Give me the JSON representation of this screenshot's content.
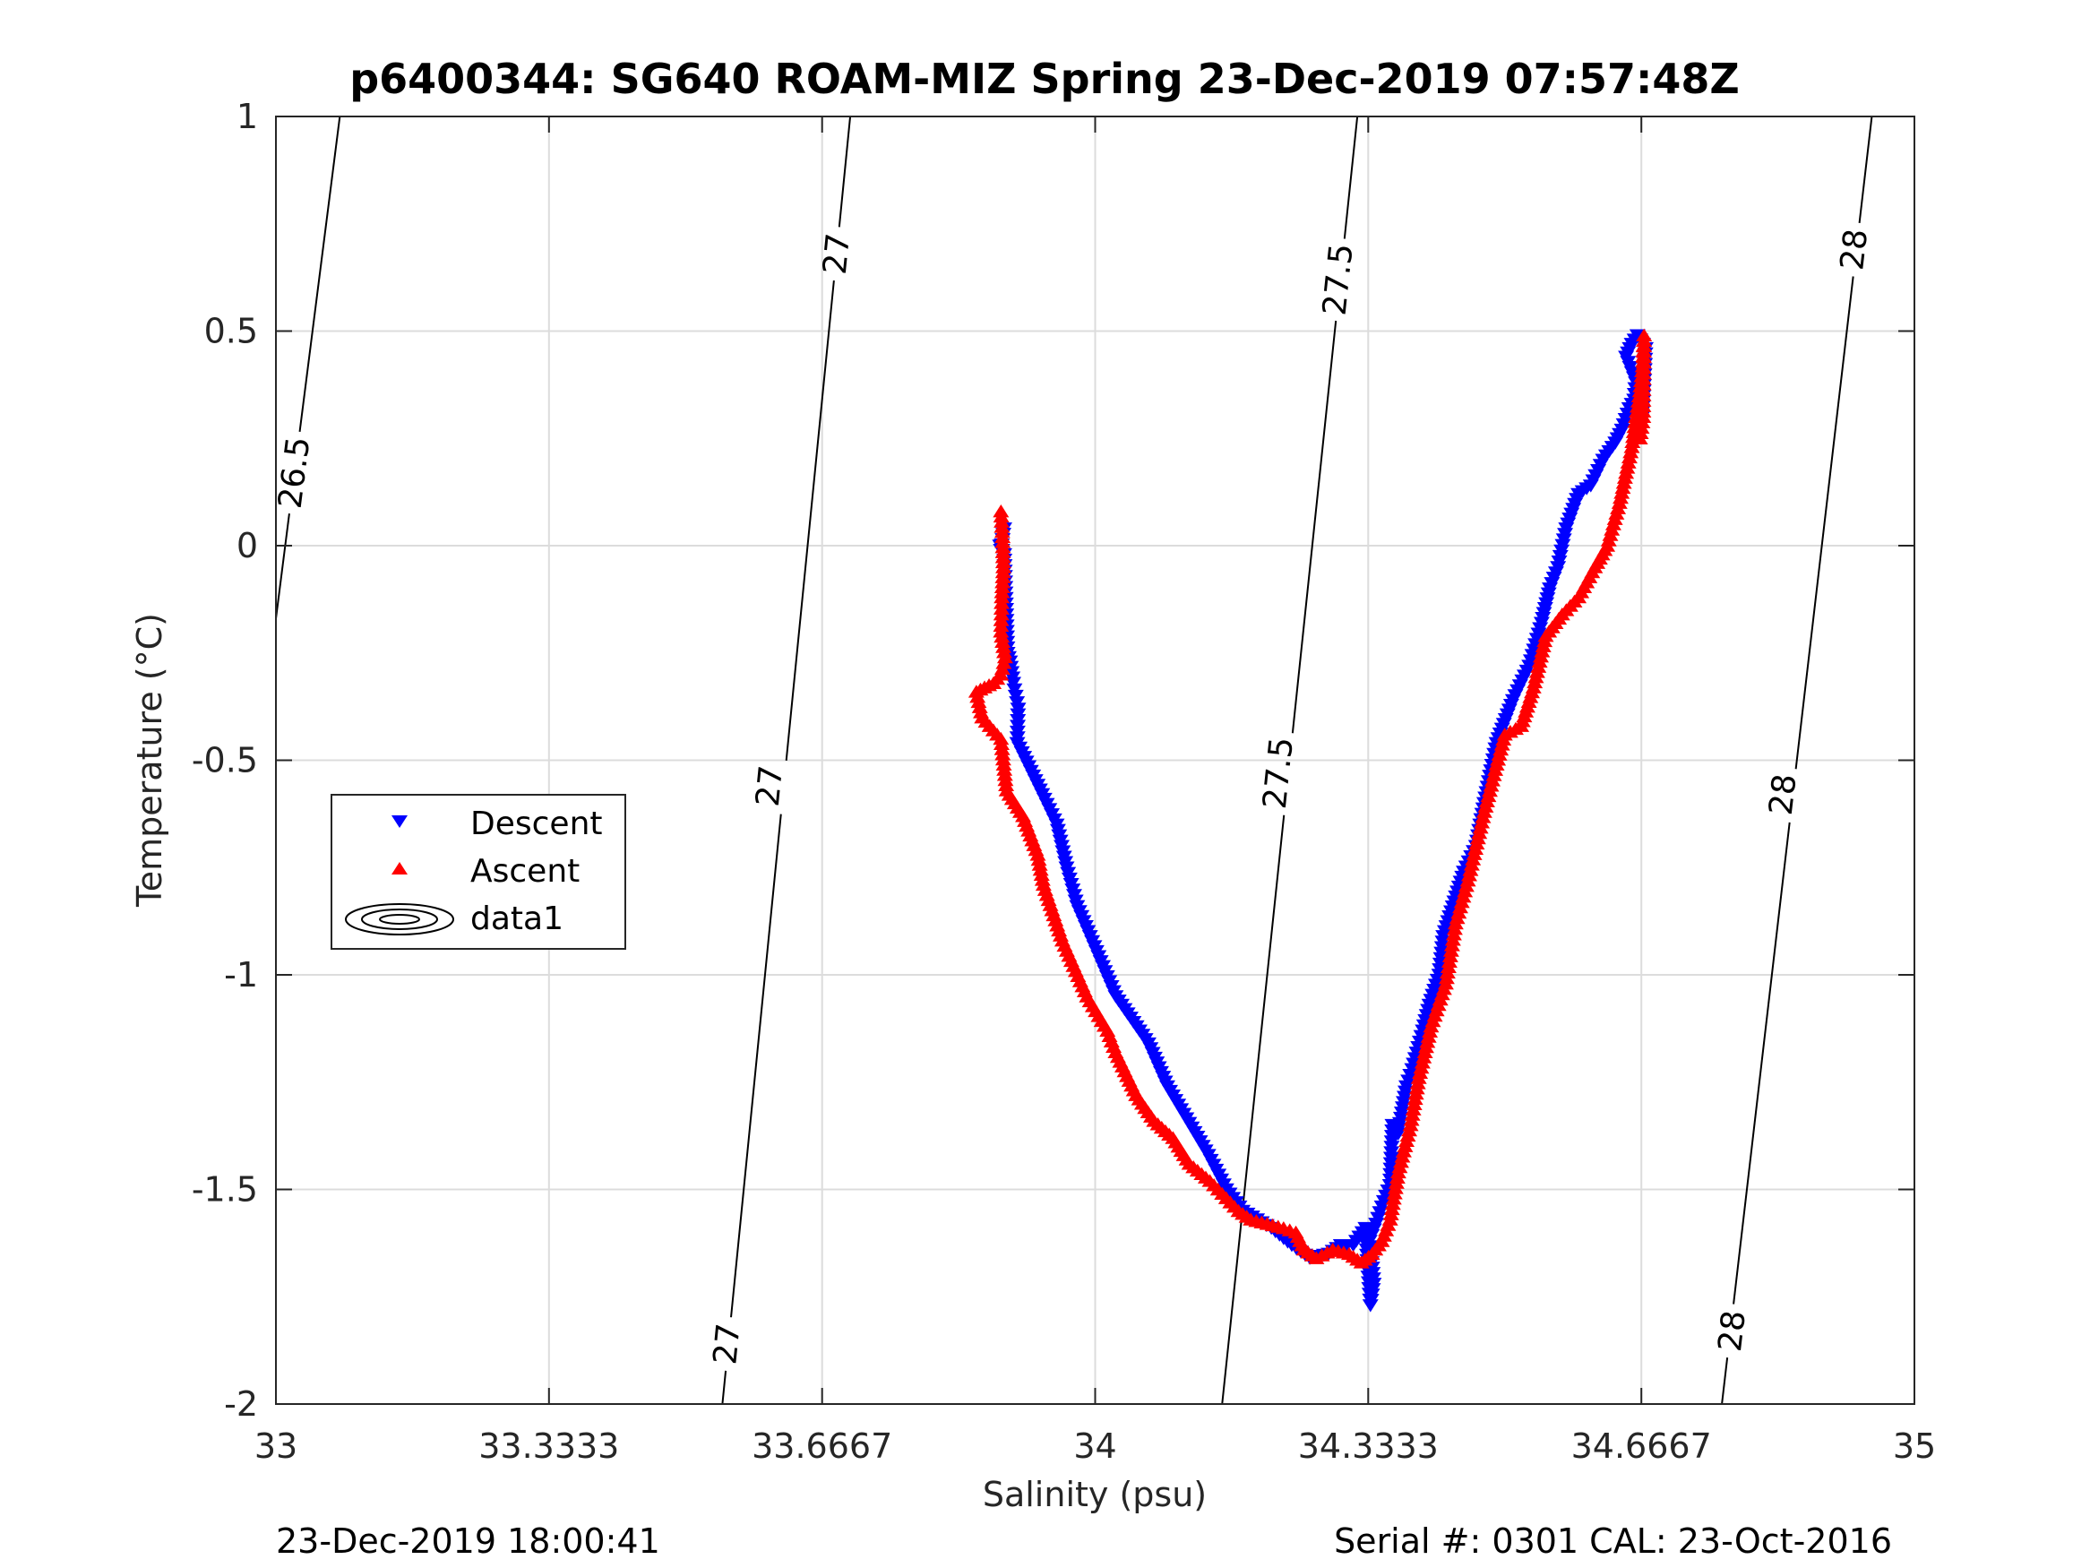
{
  "chart_data": {
    "type": "scatter",
    "title": "p6400344: SG640 ROAM-MIZ Spring 23-Dec-2019 07:57:48Z",
    "xlabel": "Salinity (psu)",
    "ylabel": "Temperature (°C)",
    "xlim": [
      33,
      35
    ],
    "ylim": [
      -2,
      1
    ],
    "grid": true,
    "x_ticks": [
      "33",
      "33.3333",
      "33.6667",
      "34",
      "34.3333",
      "34.6667",
      "35"
    ],
    "y_ticks": [
      "1",
      "0.5",
      "0",
      "-0.5",
      "-1",
      "-1.5",
      "-2"
    ],
    "legend": {
      "placement": "left-middle",
      "entries": [
        "Descent",
        "Ascent",
        "data1"
      ]
    },
    "colors": {
      "descent": "#0000ff",
      "ascent": "#ff0000",
      "contour": "#000000",
      "grid": "#dcdcdc"
    },
    "isopycnals": [
      {
        "label": "26.5",
        "points": [
          [
            33.0,
            -0.17
          ],
          [
            33.078,
            1.0
          ]
        ],
        "labels_at": [
          [
            33.023,
            0.17
          ]
        ]
      },
      {
        "label": "27",
        "points": [
          [
            33.545,
            -2.0
          ],
          [
            33.701,
            1.0
          ]
        ],
        "labels_at": [
          [
            33.551,
            -1.86
          ],
          [
            33.603,
            -0.56
          ],
          [
            33.685,
            0.68
          ]
        ]
      },
      {
        "label": "27.5",
        "points": [
          [
            34.155,
            -2.0
          ],
          [
            34.32,
            1.0
          ]
        ],
        "labels_at": [
          [
            34.224,
            -0.53
          ],
          [
            34.297,
            0.62
          ]
        ]
      },
      {
        "label": "28",
        "points": [
          [
            34.765,
            -2.0
          ],
          [
            34.948,
            1.0
          ]
        ],
        "labels_at": [
          [
            34.778,
            -1.83
          ],
          [
            34.84,
            -0.58
          ],
          [
            34.927,
            0.69
          ]
        ]
      }
    ],
    "series": [
      {
        "name": "Descent",
        "marker": "triangle-down",
        "points": [
          [
            33.889,
            0.04
          ],
          [
            33.885,
            -0.01
          ],
          [
            33.884,
            0.0
          ],
          [
            33.889,
            -0.02
          ],
          [
            33.893,
            -0.25
          ],
          [
            33.896,
            -0.27
          ],
          [
            33.9,
            -0.32
          ],
          [
            33.903,
            -0.35
          ],
          [
            33.906,
            -0.38
          ],
          [
            33.905,
            -0.46
          ],
          [
            33.938,
            -0.59
          ],
          [
            33.953,
            -0.65
          ],
          [
            33.965,
            -0.75
          ],
          [
            33.978,
            -0.84
          ],
          [
            34.025,
            -1.05
          ],
          [
            34.065,
            -1.16
          ],
          [
            34.088,
            -1.26
          ],
          [
            34.138,
            -1.42
          ],
          [
            34.16,
            -1.5
          ],
          [
            34.18,
            -1.55
          ],
          [
            34.215,
            -1.59
          ],
          [
            34.24,
            -1.63
          ],
          [
            34.262,
            -1.66
          ],
          [
            34.285,
            -1.65
          ],
          [
            34.3,
            -1.63
          ],
          [
            34.315,
            -1.63
          ],
          [
            34.33,
            -1.59
          ],
          [
            34.333,
            -1.69
          ],
          [
            34.336,
            -1.77
          ],
          [
            34.34,
            -1.72
          ],
          [
            34.335,
            -1.62
          ],
          [
            34.343,
            -1.58
          ],
          [
            34.35,
            -1.54
          ],
          [
            34.36,
            -1.49
          ],
          [
            34.363,
            -1.35
          ],
          [
            34.37,
            -1.37
          ],
          [
            34.38,
            -1.26
          ],
          [
            34.387,
            -1.22
          ],
          [
            34.4,
            -1.13
          ],
          [
            34.408,
            -1.07
          ],
          [
            34.42,
            -1.0
          ],
          [
            34.425,
            -0.91
          ],
          [
            34.45,
            -0.76
          ],
          [
            34.465,
            -0.7
          ],
          [
            34.475,
            -0.6
          ],
          [
            34.49,
            -0.46
          ],
          [
            34.51,
            -0.36
          ],
          [
            34.53,
            -0.28
          ],
          [
            34.545,
            -0.18
          ],
          [
            34.555,
            -0.1
          ],
          [
            34.565,
            -0.05
          ],
          [
            34.575,
            0.04
          ],
          [
            34.59,
            0.12
          ],
          [
            34.605,
            0.14
          ],
          [
            34.62,
            0.2
          ],
          [
            34.635,
            0.24
          ],
          [
            34.643,
            0.27
          ],
          [
            34.652,
            0.32
          ],
          [
            34.658,
            0.34
          ],
          [
            34.66,
            0.38
          ],
          [
            34.648,
            0.44
          ],
          [
            34.655,
            0.47
          ],
          [
            34.662,
            0.49
          ],
          [
            34.672,
            0.46
          ],
          [
            34.668,
            0.3
          ]
        ]
      },
      {
        "name": "Ascent",
        "marker": "triangle-up",
        "points": [
          [
            33.885,
            0.08
          ],
          [
            33.887,
            0.02
          ],
          [
            33.888,
            -0.05
          ],
          [
            33.886,
            -0.12
          ],
          [
            33.885,
            -0.2
          ],
          [
            33.89,
            -0.26
          ],
          [
            33.885,
            -0.3
          ],
          [
            33.876,
            -0.32
          ],
          [
            33.865,
            -0.33
          ],
          [
            33.855,
            -0.34
          ],
          [
            33.862,
            -0.4
          ],
          [
            33.885,
            -0.45
          ],
          [
            33.892,
            -0.57
          ],
          [
            33.912,
            -0.63
          ],
          [
            33.93,
            -0.72
          ],
          [
            33.937,
            -0.79
          ],
          [
            33.96,
            -0.92
          ],
          [
            33.99,
            -1.05
          ],
          [
            34.015,
            -1.13
          ],
          [
            34.025,
            -1.18
          ],
          [
            34.05,
            -1.28
          ],
          [
            34.072,
            -1.34
          ],
          [
            34.095,
            -1.38
          ],
          [
            34.115,
            -1.44
          ],
          [
            34.14,
            -1.48
          ],
          [
            34.16,
            -1.52
          ],
          [
            34.175,
            -1.55
          ],
          [
            34.19,
            -1.57
          ],
          [
            34.21,
            -1.58
          ],
          [
            34.23,
            -1.59
          ],
          [
            34.245,
            -1.6
          ],
          [
            34.255,
            -1.64
          ],
          [
            34.27,
            -1.66
          ],
          [
            34.29,
            -1.64
          ],
          [
            34.31,
            -1.65
          ],
          [
            34.325,
            -1.67
          ],
          [
            34.338,
            -1.65
          ],
          [
            34.35,
            -1.62
          ],
          [
            34.36,
            -1.57
          ],
          [
            34.37,
            -1.46
          ],
          [
            34.385,
            -1.35
          ],
          [
            34.395,
            -1.24
          ],
          [
            34.41,
            -1.12
          ],
          [
            34.428,
            -1.02
          ],
          [
            34.44,
            -0.88
          ],
          [
            34.455,
            -0.78
          ],
          [
            34.475,
            -0.62
          ],
          [
            34.49,
            -0.51
          ],
          [
            34.5,
            -0.44
          ],
          [
            34.52,
            -0.42
          ],
          [
            34.535,
            -0.33
          ],
          [
            34.55,
            -0.21
          ],
          [
            34.57,
            -0.16
          ],
          [
            34.59,
            -0.12
          ],
          [
            34.61,
            -0.05
          ],
          [
            34.625,
            0.0
          ],
          [
            34.64,
            0.1
          ],
          [
            34.648,
            0.17
          ],
          [
            34.655,
            0.23
          ],
          [
            34.66,
            0.3
          ],
          [
            34.665,
            0.36
          ],
          [
            34.669,
            0.43
          ],
          [
            34.67,
            0.49
          ],
          [
            34.669,
            0.3
          ],
          [
            34.665,
            0.25
          ]
        ]
      },
      {
        "name": "data1",
        "marker": "contour"
      }
    ]
  },
  "footer": {
    "left": "23-Dec-2019 18:00:41",
    "right": "Serial #: 0301  CAL: 23-Oct-2016"
  }
}
